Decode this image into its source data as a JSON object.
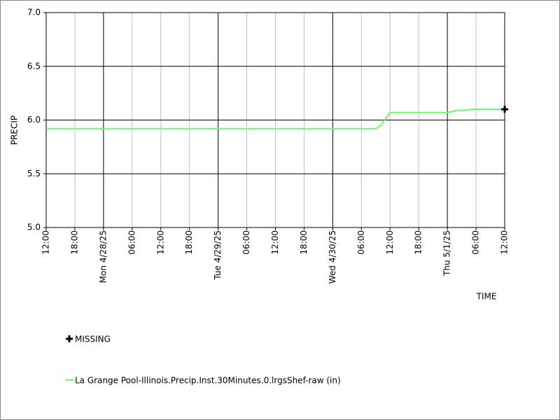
{
  "chart_data": {
    "type": "line",
    "x_label": "TIME",
    "y_label": "PRECIP",
    "x": [
      "2025-04-27T12:00",
      "2025-04-30T09:00",
      "2025-04-30T10:00",
      "2025-04-30T12:00",
      "2025-05-01T00:00",
      "2025-05-01T02:00",
      "2025-05-01T04:00",
      "2025-05-01T05:00",
      "2025-05-01T12:00"
    ],
    "series": [
      {
        "name": "La Grange Pool-Illinois.Precip.Inst.30Minutes.0.lrgsShef-raw (in)",
        "color": "#66ff66",
        "values": [
          5.92,
          5.92,
          5.95,
          6.07,
          6.07,
          6.09,
          6.09,
          6.1,
          6.1
        ]
      },
      {
        "name": "MISSING",
        "color": "#000000",
        "marker": "cross",
        "values": [
          null,
          null,
          null,
          null,
          null,
          null,
          null,
          null,
          6.1
        ]
      }
    ],
    "xlim": [
      "2025-04-27T12:00",
      "2025-05-01T12:00"
    ],
    "xticks": [
      {
        "value": "2025-04-27T12:00",
        "label": "12:00"
      },
      {
        "value": "2025-04-27T18:00",
        "label": "18:00"
      },
      {
        "value": "2025-04-28T00:00",
        "label": "Mon 4/28/25"
      },
      {
        "value": "2025-04-28T06:00",
        "label": "06:00"
      },
      {
        "value": "2025-04-28T12:00",
        "label": "12:00"
      },
      {
        "value": "2025-04-28T18:00",
        "label": "18:00"
      },
      {
        "value": "2025-04-29T00:00",
        "label": "Tue 4/29/25"
      },
      {
        "value": "2025-04-29T06:00",
        "label": "06:00"
      },
      {
        "value": "2025-04-29T12:00",
        "label": "12:00"
      },
      {
        "value": "2025-04-29T18:00",
        "label": "18:00"
      },
      {
        "value": "2025-04-30T00:00",
        "label": "Wed 4/30/25"
      },
      {
        "value": "2025-04-30T06:00",
        "label": "06:00"
      },
      {
        "value": "2025-04-30T12:00",
        "label": "12:00"
      },
      {
        "value": "2025-04-30T18:00",
        "label": "18:00"
      },
      {
        "value": "2025-05-01T00:00",
        "label": "Thu 5/1/25"
      },
      {
        "value": "2025-05-01T06:00",
        "label": "06:00"
      },
      {
        "value": "2025-05-01T12:00",
        "label": "12:00"
      }
    ],
    "ylim": [
      5.0,
      7.0
    ],
    "yticks": [
      {
        "value": 5.0,
        "label": "5.0"
      },
      {
        "value": 5.5,
        "label": "5.5"
      },
      {
        "value": 6.0,
        "label": "6.0"
      },
      {
        "value": 6.5,
        "label": "6.5"
      },
      {
        "value": 7.0,
        "label": "7.0"
      }
    ],
    "grid": true
  }
}
